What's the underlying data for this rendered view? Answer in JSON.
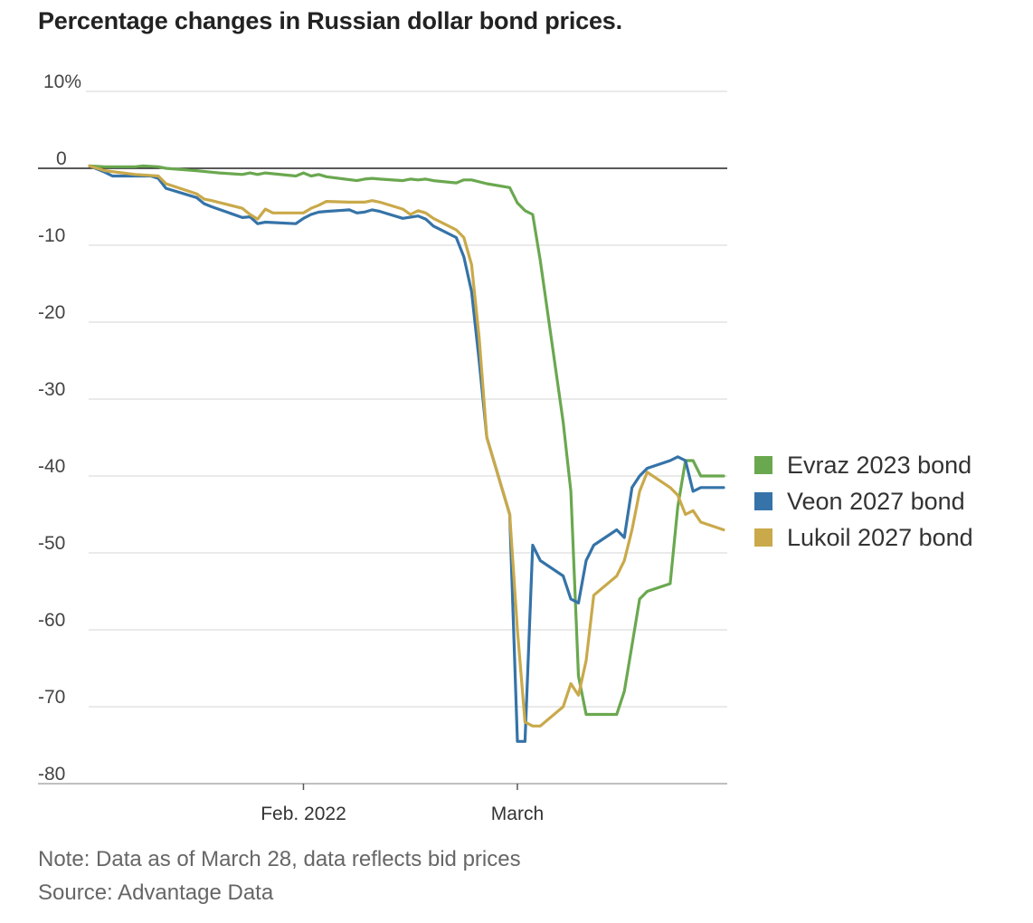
{
  "chart_data": {
    "type": "line",
    "title": "Percentage changes in Russian dollar bond prices.",
    "note": "Note: Data as of March 28, data reflects bid prices",
    "source": "Source: Advantage Data",
    "ylim": [
      -80,
      10
    ],
    "y_ticks": [
      {
        "value": 10,
        "label": "10%"
      },
      {
        "value": 0,
        "label": "0"
      },
      {
        "value": -10,
        "label": "-10"
      },
      {
        "value": -20,
        "label": "-20"
      },
      {
        "value": -30,
        "label": "-30"
      },
      {
        "value": -40,
        "label": "-40"
      },
      {
        "value": -50,
        "label": "-50"
      },
      {
        "value": -60,
        "label": "-60"
      },
      {
        "value": -70,
        "label": "-70"
      },
      {
        "value": -80,
        "label": "-80"
      }
    ],
    "xlim": [
      "2022-01-04",
      "2022-03-28"
    ],
    "x_ticks": [
      {
        "date": "2022-02-01",
        "label": "Feb. 2022"
      },
      {
        "date": "2022-03-01",
        "label": "March"
      }
    ],
    "grid": true,
    "legend_position": "right",
    "series": [
      {
        "name": "Evraz 2023 bond",
        "color": "#6aa84f",
        "points": [
          [
            "2022-01-04",
            0.3
          ],
          [
            "2022-01-06",
            0.2
          ],
          [
            "2022-01-10",
            0.2
          ],
          [
            "2022-01-11",
            0.3
          ],
          [
            "2022-01-13",
            0.2
          ],
          [
            "2022-01-14",
            0
          ],
          [
            "2022-01-18",
            -0.3
          ],
          [
            "2022-01-20",
            -0.5
          ],
          [
            "2022-01-21",
            -0.6
          ],
          [
            "2022-01-24",
            -0.8
          ],
          [
            "2022-01-25",
            -0.6
          ],
          [
            "2022-01-26",
            -0.8
          ],
          [
            "2022-01-27",
            -0.6
          ],
          [
            "2022-01-31",
            -1.0
          ],
          [
            "2022-02-01",
            -0.6
          ],
          [
            "2022-02-02",
            -1.0
          ],
          [
            "2022-02-03",
            -0.8
          ],
          [
            "2022-02-04",
            -1.1
          ],
          [
            "2022-02-08",
            -1.6
          ],
          [
            "2022-02-09",
            -1.4
          ],
          [
            "2022-02-10",
            -1.3
          ],
          [
            "2022-02-11",
            -1.4
          ],
          [
            "2022-02-14",
            -1.6
          ],
          [
            "2022-02-15",
            -1.4
          ],
          [
            "2022-02-16",
            -1.5
          ],
          [
            "2022-02-17",
            -1.4
          ],
          [
            "2022-02-18",
            -1.6
          ],
          [
            "2022-02-21",
            -1.9
          ],
          [
            "2022-02-22",
            -1.5
          ],
          [
            "2022-02-23",
            -1.5
          ],
          [
            "2022-02-25",
            -2.0
          ],
          [
            "2022-02-28",
            -2.5
          ],
          [
            "2022-03-01",
            -4.5
          ],
          [
            "2022-03-02",
            -5.5
          ],
          [
            "2022-03-03",
            -6.0
          ],
          [
            "2022-03-04",
            -12.0
          ],
          [
            "2022-03-07",
            -33.0
          ],
          [
            "2022-03-08",
            -42.0
          ],
          [
            "2022-03-09",
            -66.0
          ],
          [
            "2022-03-10",
            -71.0
          ],
          [
            "2022-03-11",
            -71.0
          ],
          [
            "2022-03-14",
            -71.0
          ],
          [
            "2022-03-15",
            -68.0
          ],
          [
            "2022-03-16",
            -62.0
          ],
          [
            "2022-03-17",
            -56.0
          ],
          [
            "2022-03-18",
            -55.0
          ],
          [
            "2022-03-21",
            -54.0
          ],
          [
            "2022-03-22",
            -44.0
          ],
          [
            "2022-03-23",
            -38.0
          ],
          [
            "2022-03-24",
            -38.0
          ],
          [
            "2022-03-25",
            -40.0
          ],
          [
            "2022-03-28",
            -40.0
          ]
        ]
      },
      {
        "name": "Veon 2027 bond",
        "color": "#3573a8",
        "points": [
          [
            "2022-01-04",
            0.3
          ],
          [
            "2022-01-06",
            -0.5
          ],
          [
            "2022-01-07",
            -1.0
          ],
          [
            "2022-01-10",
            -1.0
          ],
          [
            "2022-01-11",
            -1.0
          ],
          [
            "2022-01-12",
            -1.0
          ],
          [
            "2022-01-13",
            -1.3
          ],
          [
            "2022-01-14",
            -2.6
          ],
          [
            "2022-01-18",
            -3.8
          ],
          [
            "2022-01-19",
            -4.6
          ],
          [
            "2022-01-20",
            -5.0
          ],
          [
            "2022-01-24",
            -6.4
          ],
          [
            "2022-01-25",
            -6.3
          ],
          [
            "2022-01-26",
            -7.2
          ],
          [
            "2022-01-27",
            -7.0
          ],
          [
            "2022-01-31",
            -7.2
          ],
          [
            "2022-02-01",
            -6.5
          ],
          [
            "2022-02-02",
            -6.0
          ],
          [
            "2022-02-03",
            -5.7
          ],
          [
            "2022-02-04",
            -5.6
          ],
          [
            "2022-02-07",
            -5.4
          ],
          [
            "2022-02-08",
            -5.8
          ],
          [
            "2022-02-09",
            -5.7
          ],
          [
            "2022-02-10",
            -5.4
          ],
          [
            "2022-02-11",
            -5.6
          ],
          [
            "2022-02-14",
            -6.5
          ],
          [
            "2022-02-16",
            -6.2
          ],
          [
            "2022-02-17",
            -6.6
          ],
          [
            "2022-02-18",
            -7.5
          ],
          [
            "2022-02-21",
            -9.0
          ],
          [
            "2022-02-22",
            -11.5
          ],
          [
            "2022-02-23",
            -16.0
          ],
          [
            "2022-02-24",
            -25.0
          ],
          [
            "2022-02-25",
            -35.0
          ],
          [
            "2022-02-28",
            -45.0
          ],
          [
            "2022-03-01",
            -74.5
          ],
          [
            "2022-03-02",
            -74.5
          ],
          [
            "2022-03-03",
            -49.0
          ],
          [
            "2022-03-04",
            -51.0
          ],
          [
            "2022-03-07",
            -53.0
          ],
          [
            "2022-03-08",
            -56.0
          ],
          [
            "2022-03-09",
            -56.5
          ],
          [
            "2022-03-10",
            -51.0
          ],
          [
            "2022-03-11",
            -49.0
          ],
          [
            "2022-03-14",
            -47.0
          ],
          [
            "2022-03-15",
            -48.0
          ],
          [
            "2022-03-16",
            -41.5
          ],
          [
            "2022-03-17",
            -40.0
          ],
          [
            "2022-03-18",
            -39.0
          ],
          [
            "2022-03-21",
            -38.0
          ],
          [
            "2022-03-22",
            -37.5
          ],
          [
            "2022-03-23",
            -38.0
          ],
          [
            "2022-03-24",
            -42.0
          ],
          [
            "2022-03-25",
            -41.5
          ],
          [
            "2022-03-28",
            -41.5
          ]
        ]
      },
      {
        "name": "Lukoil 2027 bond",
        "color": "#c9a94a",
        "points": [
          [
            "2022-01-04",
            0.3
          ],
          [
            "2022-01-06",
            -0.3
          ],
          [
            "2022-01-10",
            -0.8
          ],
          [
            "2022-01-13",
            -1.0
          ],
          [
            "2022-01-14",
            -2.0
          ],
          [
            "2022-01-18",
            -3.3
          ],
          [
            "2022-01-19",
            -4.0
          ],
          [
            "2022-01-20",
            -4.2
          ],
          [
            "2022-01-24",
            -5.2
          ],
          [
            "2022-01-25",
            -6.0
          ],
          [
            "2022-01-26",
            -6.6
          ],
          [
            "2022-01-27",
            -5.3
          ],
          [
            "2022-01-28",
            -5.8
          ],
          [
            "2022-02-01",
            -5.8
          ],
          [
            "2022-02-02",
            -5.2
          ],
          [
            "2022-02-03",
            -4.8
          ],
          [
            "2022-02-04",
            -4.3
          ],
          [
            "2022-02-07",
            -4.4
          ],
          [
            "2022-02-08",
            -4.4
          ],
          [
            "2022-02-09",
            -4.4
          ],
          [
            "2022-02-10",
            -4.2
          ],
          [
            "2022-02-11",
            -4.4
          ],
          [
            "2022-02-14",
            -5.3
          ],
          [
            "2022-02-15",
            -6.0
          ],
          [
            "2022-02-16",
            -5.5
          ],
          [
            "2022-02-17",
            -5.8
          ],
          [
            "2022-02-18",
            -6.5
          ],
          [
            "2022-02-21",
            -8.0
          ],
          [
            "2022-02-22",
            -9.0
          ],
          [
            "2022-02-23",
            -12.5
          ],
          [
            "2022-02-24",
            -22.0
          ],
          [
            "2022-02-25",
            -35.0
          ],
          [
            "2022-02-28",
            -45.0
          ],
          [
            "2022-03-01",
            -60.0
          ],
          [
            "2022-03-02",
            -72.0
          ],
          [
            "2022-03-03",
            -72.5
          ],
          [
            "2022-03-04",
            -72.5
          ],
          [
            "2022-03-07",
            -70.0
          ],
          [
            "2022-03-08",
            -67.0
          ],
          [
            "2022-03-09",
            -68.5
          ],
          [
            "2022-03-10",
            -64.0
          ],
          [
            "2022-03-11",
            -55.5
          ],
          [
            "2022-03-14",
            -53.0
          ],
          [
            "2022-03-15",
            -51.0
          ],
          [
            "2022-03-16",
            -47.0
          ],
          [
            "2022-03-17",
            -42.0
          ],
          [
            "2022-03-18",
            -39.5
          ],
          [
            "2022-03-21",
            -41.5
          ],
          [
            "2022-03-22",
            -42.5
          ],
          [
            "2022-03-23",
            -45.0
          ],
          [
            "2022-03-24",
            -44.5
          ],
          [
            "2022-03-25",
            -46.0
          ],
          [
            "2022-03-28",
            -47.0
          ]
        ]
      }
    ]
  },
  "styles": {
    "grid_color": "#dddddd",
    "zero_line_color": "#222222",
    "axis_color": "#999999"
  }
}
